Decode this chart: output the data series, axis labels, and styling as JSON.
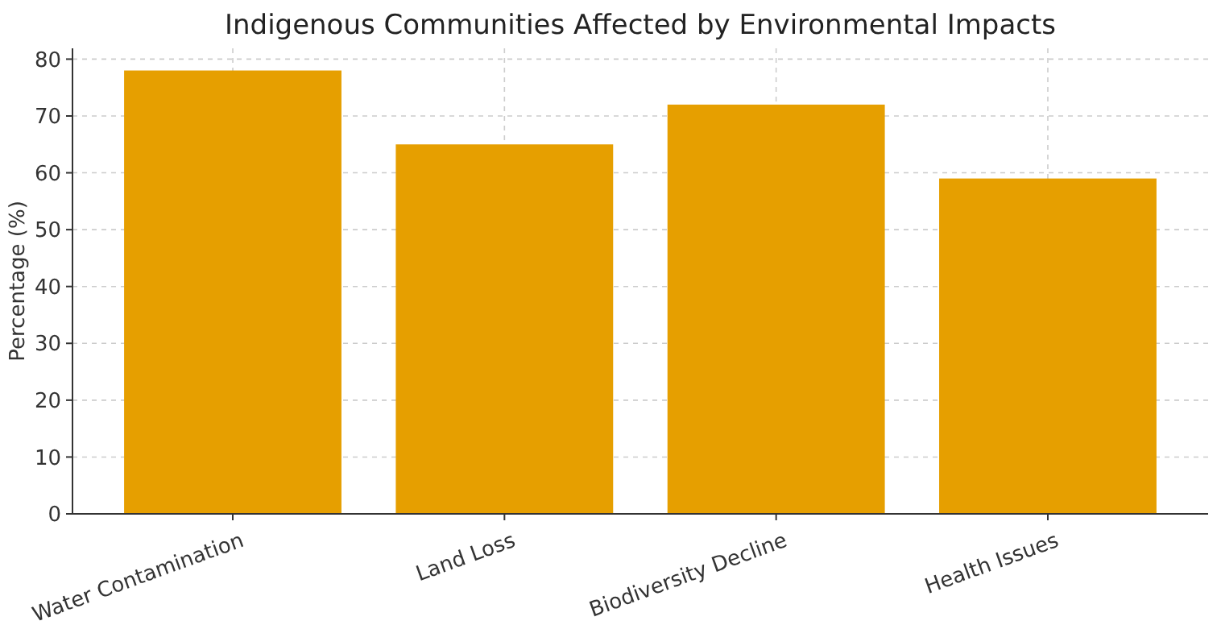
{
  "chart_data": {
    "type": "bar",
    "title": "Indigenous Communities Affected by Environmental Impacts",
    "ylabel": "Percentage (%)",
    "categories": [
      "Water Contamination",
      "Land Loss",
      "Biodiversity Decline",
      "Health Issues"
    ],
    "values": [
      78,
      65,
      72,
      59
    ],
    "color": "#e69f00",
    "ylim": [
      0,
      81.9
    ],
    "yticks": [
      0,
      10,
      20,
      30,
      40,
      50,
      60,
      70,
      80
    ],
    "grid": true
  }
}
